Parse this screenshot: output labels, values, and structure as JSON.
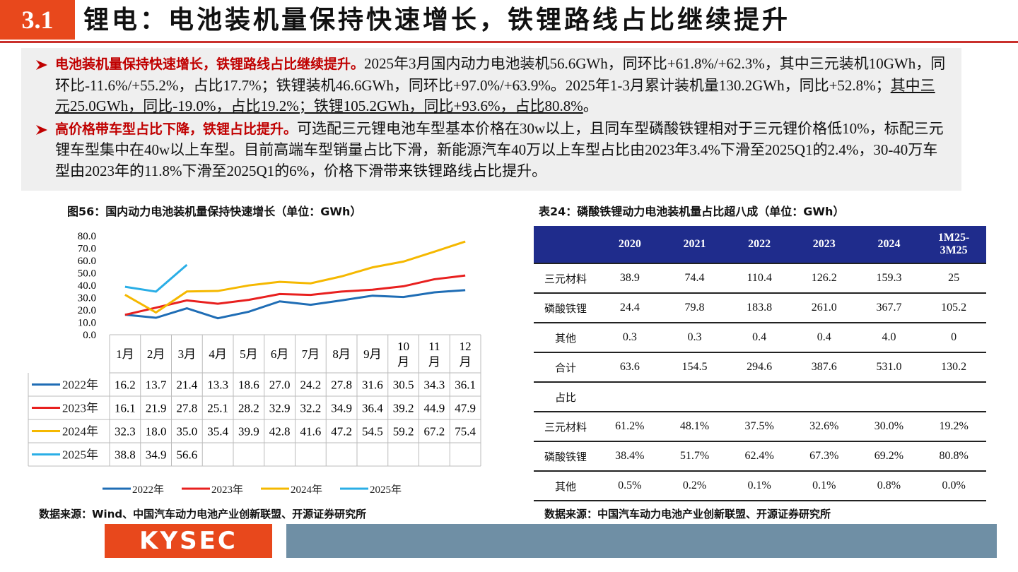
{
  "header": {
    "number": "3.1",
    "title": "锂电：电池装机量保持快速增长，铁锂路线占比继续提升"
  },
  "bullets": [
    {
      "lead": "电池装机量保持快速增长，铁锂路线占比继续提升。",
      "text": "2025年3月国内动力电池装机56.6GWh，同环比+61.8%/+62.3%，其中三元装机10GWh，同环比-11.6%/+55.2%，占比17.7%；铁锂装机46.6GWh，同环比+97.0%/+63.9%。2025年1-3月累计装机量130.2GWh，同比+52.8%；",
      "underlined": "其中三元25.0GWh，同比-19.0%，占比19.2%；铁锂105.2GWh，同比+93.6%，占比80.8%",
      "tail": "。"
    },
    {
      "lead": "高价格带车型占比下降，铁锂占比提升。",
      "text": "可选配三元锂电池车型基本价格在30w以上，且同车型磷酸铁锂相对于三元锂价格低10%，标配三元锂车型集中在40w以上车型。目前高端车型销量占比下滑，新能源汽车40万以上车型占比由2023年3.4%下滑至2025Q1的2.4%，30-40万车型由2023年的11.8%下滑至2025Q1的6%，价格下滑带来铁锂路线占比提升。"
    }
  ],
  "chart_data": {
    "type": "line",
    "title": "图56：国内动力电池装机量保持快速增长（单位：GWh）",
    "categories": [
      "1月",
      "2月",
      "3月",
      "4月",
      "5月",
      "6月",
      "7月",
      "8月",
      "9月",
      "10月",
      "11月",
      "12月"
    ],
    "series": [
      {
        "name": "2022年",
        "color": "#1f6db5",
        "values": [
          16.2,
          13.7,
          21.4,
          13.3,
          18.6,
          27.0,
          24.2,
          27.8,
          31.6,
          30.5,
          34.3,
          36.1
        ],
        "value_labels": [
          "16.2",
          "13.7",
          "21.4",
          "13.3",
          "18.6",
          "27.0",
          "24.2",
          "27.8",
          "31.6",
          "30.5",
          "34.3",
          "36.1"
        ]
      },
      {
        "name": "2023年",
        "color": "#e8201f",
        "values": [
          16.1,
          21.9,
          27.8,
          25.1,
          28.2,
          32.9,
          32.2,
          34.9,
          36.4,
          39.2,
          44.9,
          47.9
        ],
        "value_labels": [
          "16.1",
          "21.9",
          "27.8",
          "25.1",
          "28.2",
          "32.9",
          "32.2",
          "34.9",
          "36.4",
          "39.2",
          "44.9",
          "47.9"
        ]
      },
      {
        "name": "2024年",
        "color": "#f5b800",
        "values": [
          32.3,
          18.0,
          35.0,
          35.4,
          39.9,
          42.8,
          41.6,
          47.2,
          54.5,
          59.2,
          67.2,
          75.4
        ],
        "value_labels": [
          "32.3",
          "18.0",
          "35.0",
          "35.4",
          "39.9",
          "42.8",
          "41.6",
          "47.2",
          "54.5",
          "59.2",
          "67.2",
          "75.4"
        ]
      },
      {
        "name": "2025年",
        "color": "#2aaee6",
        "values": [
          38.8,
          34.9,
          56.6,
          null,
          null,
          null,
          null,
          null,
          null,
          null,
          null,
          null
        ],
        "value_labels": [
          "38.8",
          "34.9",
          "56.6",
          null,
          null,
          null,
          null,
          null,
          null,
          null,
          null,
          null
        ]
      }
    ],
    "ylim": [
      0,
      80
    ],
    "yticks": [
      {
        "value": 0,
        "label": "0.0"
      },
      {
        "value": 10,
        "label": "10.0"
      },
      {
        "value": 20,
        "label": "20.0"
      },
      {
        "value": 30,
        "label": "30.0"
      },
      {
        "value": 40,
        "label": "40.0"
      },
      {
        "value": 50,
        "label": "50.0"
      },
      {
        "value": 60,
        "label": "60.0"
      },
      {
        "value": 70,
        "label": "70.0"
      },
      {
        "value": 80,
        "label": "80.0"
      }
    ],
    "source": "数据来源：Wind、中国汽车动力电池产业创新联盟、开源证券研究所"
  },
  "table": {
    "title": "表24：磷酸铁锂动力电池装机量占比超八成（单位：GWh）",
    "columns": [
      "2020",
      "2021",
      "2022",
      "2023",
      "2024",
      "1M25-3M25"
    ],
    "rows": [
      [
        "三元材料",
        "38.9",
        "74.4",
        "110.4",
        "126.2",
        "159.3",
        "25"
      ],
      [
        "磷酸铁锂",
        "24.4",
        "79.8",
        "183.8",
        "261.0",
        "367.7",
        "105.2"
      ],
      [
        "其他",
        "0.3",
        "0.3",
        "0.4",
        "0.4",
        "4.0",
        "0"
      ],
      [
        "合计",
        "63.6",
        "154.5",
        "294.6",
        "387.6",
        "531.0",
        "130.2"
      ],
      [
        "占比"
      ],
      [
        "三元材料",
        "61.2%",
        "48.1%",
        "37.5%",
        "32.6%",
        "30.0%",
        "19.2%"
      ],
      [
        "磷酸铁锂",
        "38.4%",
        "51.7%",
        "62.4%",
        "67.3%",
        "69.2%",
        "80.8%"
      ],
      [
        "其他",
        "0.5%",
        "0.2%",
        "0.1%",
        "0.1%",
        "0.8%",
        "0.0%"
      ]
    ],
    "source": "数据来源：中国汽车动力电池产业创新联盟、开源证券研究所"
  },
  "footer": {
    "logo": "KYSEC"
  }
}
